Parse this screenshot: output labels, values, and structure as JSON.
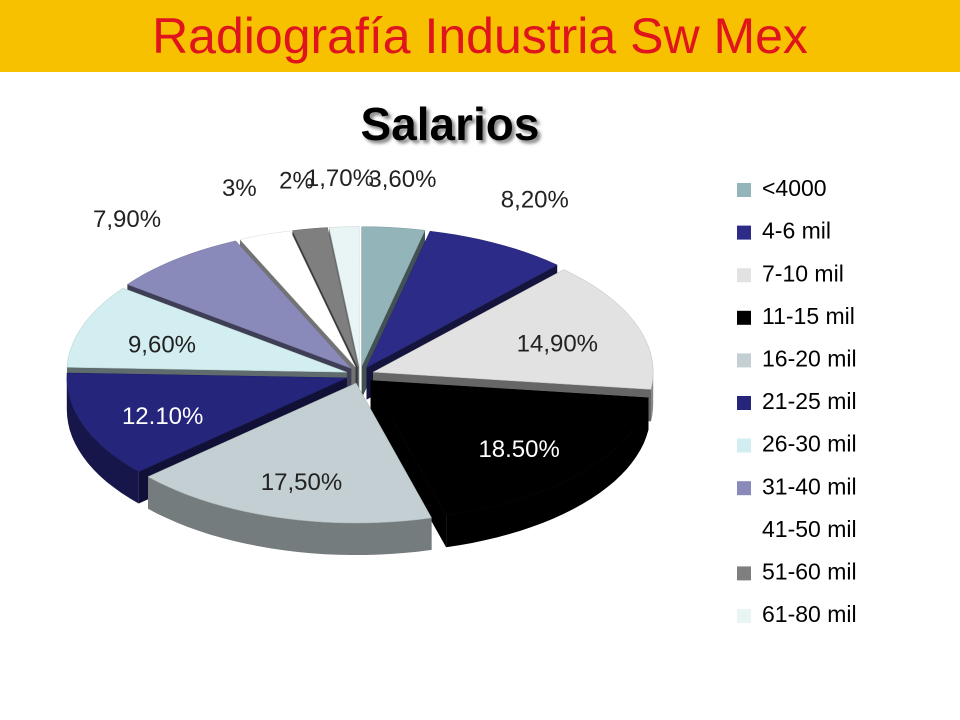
{
  "header": {
    "title": "Radiografía Industria Sw Mex"
  },
  "chart_data": {
    "type": "pie3d",
    "title": "Salarios",
    "categories": [
      "<4000",
      "4-6 mil",
      "7-10 mil",
      "11-15 mil",
      "16-20 mil",
      "21-25 mil",
      "26-30 mil",
      "31-40 mil",
      "41-50 mil",
      "51-60 mil",
      "61-80 mil"
    ],
    "series": [
      {
        "values": [
          3.6,
          8.2,
          14.9,
          18.5,
          17.5,
          12.1,
          9.6,
          7.9,
          3,
          2,
          1.7
        ],
        "value_labels": [
          "3,60%",
          "8,20%",
          "14,90%",
          "18.50%",
          "17,50%",
          "12.10%",
          "9,60%",
          "7,90%",
          "3%",
          "2%",
          "1,70%"
        ],
        "colors": [
          "#93b4b8",
          "#2c2c88",
          "#e2e2e2",
          "#000000",
          "#c3cfd2",
          "#25257c",
          "#d2eef0",
          "#8a8aba",
          "#ffffff",
          "#7f7f7f",
          "#e9f5f5"
        ]
      }
    ],
    "legend": "right"
  }
}
